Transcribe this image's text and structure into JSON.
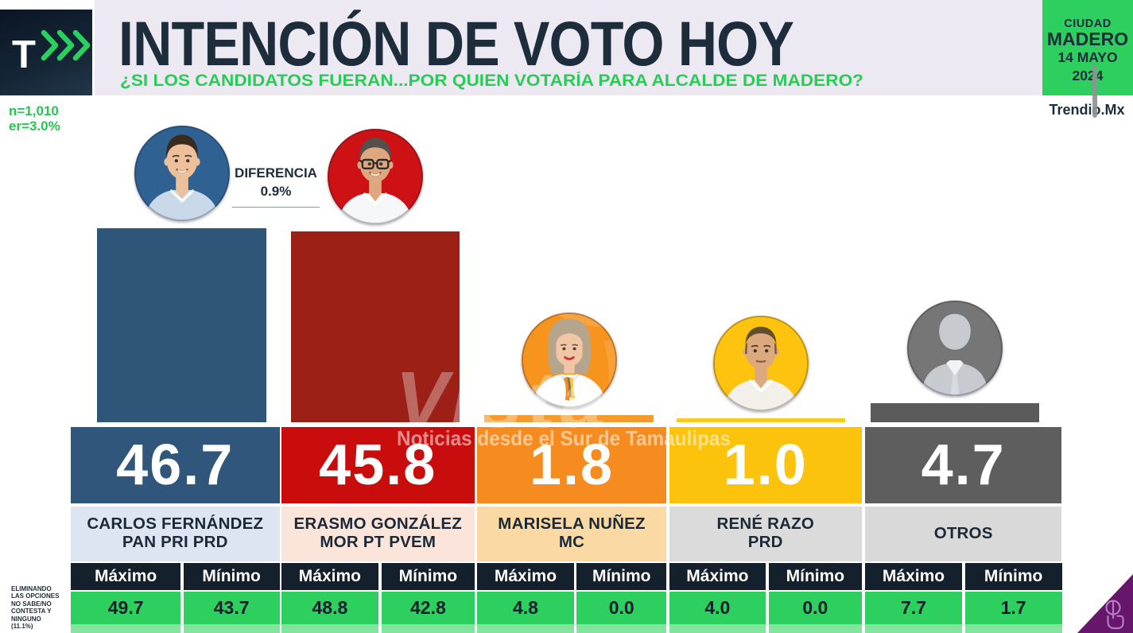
{
  "brand": {
    "logo_letter": "T",
    "source": "Trendio.Mx",
    "accent_green": "#2DD05F",
    "navy": "#1E2D3B"
  },
  "header": {
    "title": "INTENCIÓN DE VOTO HOY",
    "subtitle": "¿SI LOS CANDIDATOS FUERAN...POR QUIEN VOTARÍA PARA ALCALDE DE MADERO?",
    "sample_size": "n=1,010",
    "error_margin": "er=3.0%",
    "location_badge": {
      "line1": "CIUDAD",
      "line2": "MADERO",
      "line3": "14 MAYO",
      "line4": "2024"
    }
  },
  "difference": {
    "label": "DIFERENCIA",
    "value": "0.9%"
  },
  "table": {
    "max_label": "Máximo",
    "min_label": "Mínimo"
  },
  "watermark": {
    "title": "Vista",
    "tagline": "Noticias desde el Sur de Tamaulipas"
  },
  "footnote": "ELIMINANDO LAS OPCIONES NO SABE/NO CONTESTA Y NINGUNO (11.1%)",
  "chart_data": {
    "type": "bar",
    "title": "INTENCIÓN DE VOTO HOY",
    "subtitle": "¿SI LOS CANDIDATOS FUERAN...POR QUIEN VOTARÍA PARA ALCALDE DE MADERO?",
    "unit": "%",
    "ylim": [
      0,
      50
    ],
    "categories": [
      "CARLOS FERNÁNDEZ PAN PRI PRD",
      "ERASMO GONZÁLEZ MOR PT PVEM",
      "MARISELA NUÑEZ MC",
      "RENÉ RAZO PRD",
      "OTROS"
    ],
    "series": [
      {
        "name": "Intención de voto hoy",
        "values": [
          46.7,
          45.8,
          1.8,
          1.0,
          4.7
        ]
      },
      {
        "name": "Máximo",
        "values": [
          49.7,
          48.8,
          4.8,
          4.0,
          7.7
        ]
      },
      {
        "name": "Mínimo",
        "values": [
          43.7,
          42.8,
          0.0,
          0.0,
          1.7
        ]
      }
    ],
    "annotations": [
      "DIFERENCIA 0.9%",
      "n=1,010",
      "er=3.0%",
      "ELIMINANDO LAS OPCIONES NO SABE/NO CONTESTA Y NINGUNO (11.1%)"
    ]
  },
  "candidates": [
    {
      "name_line1": "CARLOS FERNÁNDEZ",
      "name_line2": "PAN PRI PRD",
      "value": "46.7",
      "max": "49.7",
      "min": "43.7",
      "bar_color": "#2F5679",
      "band_color": "#30567B",
      "name_bg": "#DEE5F2",
      "avatar": {
        "type": "male",
        "bg": "#2F6292",
        "hair": "#3A2B1F",
        "skin": "#EDBF9A",
        "shirt": "#C9D9EA",
        "glasses": false,
        "smile": true
      }
    },
    {
      "name_line1": "ERASMO GONZÁLEZ",
      "name_line2": "MOR PT PVEM",
      "value": "45.8",
      "max": "48.8",
      "min": "42.8",
      "bar_color": "#9C2016",
      "band_color": "#C90D0D",
      "name_bg": "#FBE4DA",
      "avatar": {
        "type": "male",
        "bg": "#CE1114",
        "hair": "#55504C",
        "skin": "#DDA87F",
        "shirt": "#F5F7F9",
        "glasses": true,
        "smile": true
      }
    },
    {
      "name_line1": "MARISELA NUÑEZ",
      "name_line2": "MC",
      "value": "1.8",
      "max": "4.8",
      "min": "0.0",
      "bar_color": "#F79A2E",
      "band_color": "#F68B1F",
      "name_bg": "#FBD9A5",
      "avatar": {
        "type": "female",
        "bg": "#F7941E",
        "hair": "#B5A58C",
        "skin": "#F0C6A4",
        "shirt": "#FEFEFE",
        "glasses": false,
        "smile": true
      }
    },
    {
      "name_line1": "RENÉ RAZO",
      "name_line2": "PRD",
      "value": "1.0",
      "max": "4.0",
      "min": "0.0",
      "bar_color": "#FCC91F",
      "band_color": "#FCC30D",
      "name_bg": "#DBDBDB",
      "avatar": {
        "type": "male",
        "bg": "#FDC30F",
        "hair": "#46392E",
        "skin": "#DCA87E",
        "shirt": "#F2F0E9",
        "glasses": false,
        "smile": false,
        "bald": true
      }
    },
    {
      "name_line1": "OTROS",
      "name_line2": "",
      "value": "4.7",
      "max": "7.7",
      "min": "1.7",
      "bar_color": "#5A5A5A",
      "band_color": "#5E5E5E",
      "name_bg": "#D9D9D9",
      "avatar": {
        "type": "generic",
        "bg": "#767676",
        "fg": "#C7CBD0"
      }
    }
  ]
}
